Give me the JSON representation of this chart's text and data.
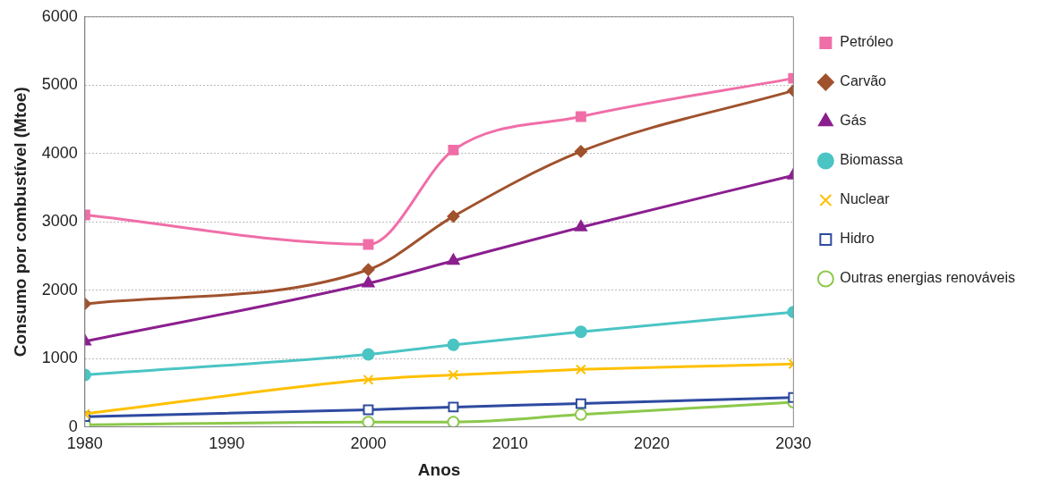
{
  "chart_data": {
    "type": "line",
    "xlabel": "Anos",
    "ylabel": "Consumo por combustível (Mtoe)",
    "x": [
      1980,
      2000,
      2006,
      2015,
      2030
    ],
    "xlim": [
      1980,
      2030
    ],
    "xticks": [
      1980,
      1990,
      2000,
      2010,
      2020,
      2030
    ],
    "ylim": [
      0,
      6000
    ],
    "yticks": [
      0,
      1000,
      2000,
      3000,
      4000,
      5000,
      6000
    ],
    "grid": "y",
    "legend": "right",
    "line_style": "solid",
    "series": [
      {
        "name": "Petróleo",
        "color": "#f06ea8",
        "marker": "square",
        "values": [
          3100,
          2670,
          4050,
          4540,
          5100
        ]
      },
      {
        "name": "Carvão",
        "color": "#a0522d",
        "marker": "diamond",
        "values": [
          1800,
          2300,
          3080,
          4030,
          4920
        ]
      },
      {
        "name": "Gás",
        "color": "#8b1f8f",
        "marker": "triangle",
        "values": [
          1250,
          2100,
          2430,
          2920,
          3680
        ]
      },
      {
        "name": "Biomassa",
        "color": "#4bc4c4",
        "marker": "circle",
        "values": [
          760,
          1060,
          1200,
          1390,
          1680
        ]
      },
      {
        "name": "Nuclear",
        "color": "#ffc000",
        "marker": "cross",
        "values": [
          190,
          690,
          760,
          840,
          920
        ]
      },
      {
        "name": "Hidro",
        "color": "#2e4aa0",
        "marker": "square-open",
        "values": [
          150,
          250,
          290,
          340,
          430
        ]
      },
      {
        "name": "Outras energias renováveis",
        "color": "#8cc84b",
        "marker": "circle-open",
        "values": [
          30,
          70,
          70,
          180,
          360
        ]
      }
    ]
  }
}
